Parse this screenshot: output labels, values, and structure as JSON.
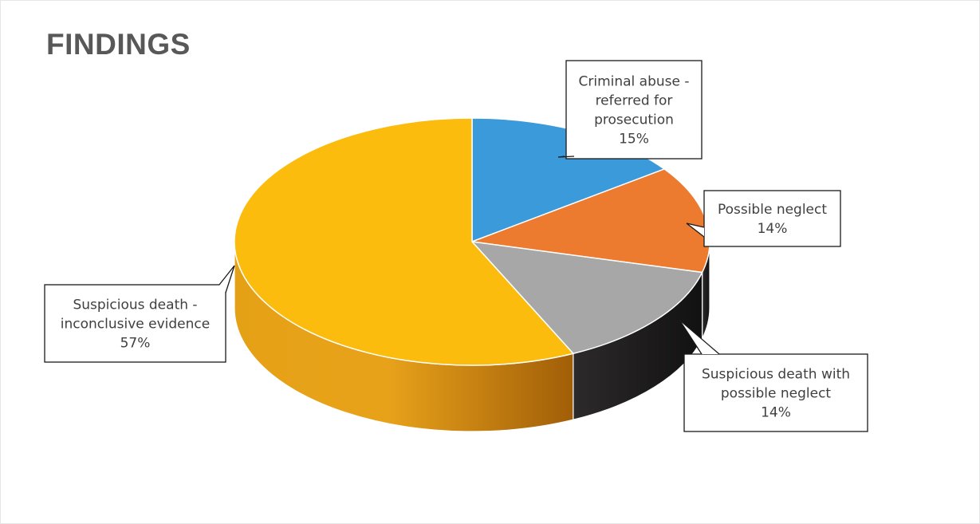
{
  "chart_data": {
    "type": "pie",
    "title": "FINDINGS",
    "slices": [
      {
        "label": [
          "Criminal abuse -",
          "referred for",
          "prosecution"
        ],
        "percent_label": "15%",
        "value": 15,
        "color": "#3b9ad9"
      },
      {
        "label": [
          "Possible neglect"
        ],
        "percent_label": "14%",
        "value": 14,
        "color": "#ec7a2f"
      },
      {
        "label": [
          "Suspicious death with",
          "possible neglect"
        ],
        "percent_label": "14%",
        "value": 14,
        "color": "#a7a7a7"
      },
      {
        "label": [
          "Suspicious death -",
          "inconclusive evidence"
        ],
        "percent_label": "57%",
        "value": 57,
        "color": "#fbbc0e"
      }
    ]
  }
}
